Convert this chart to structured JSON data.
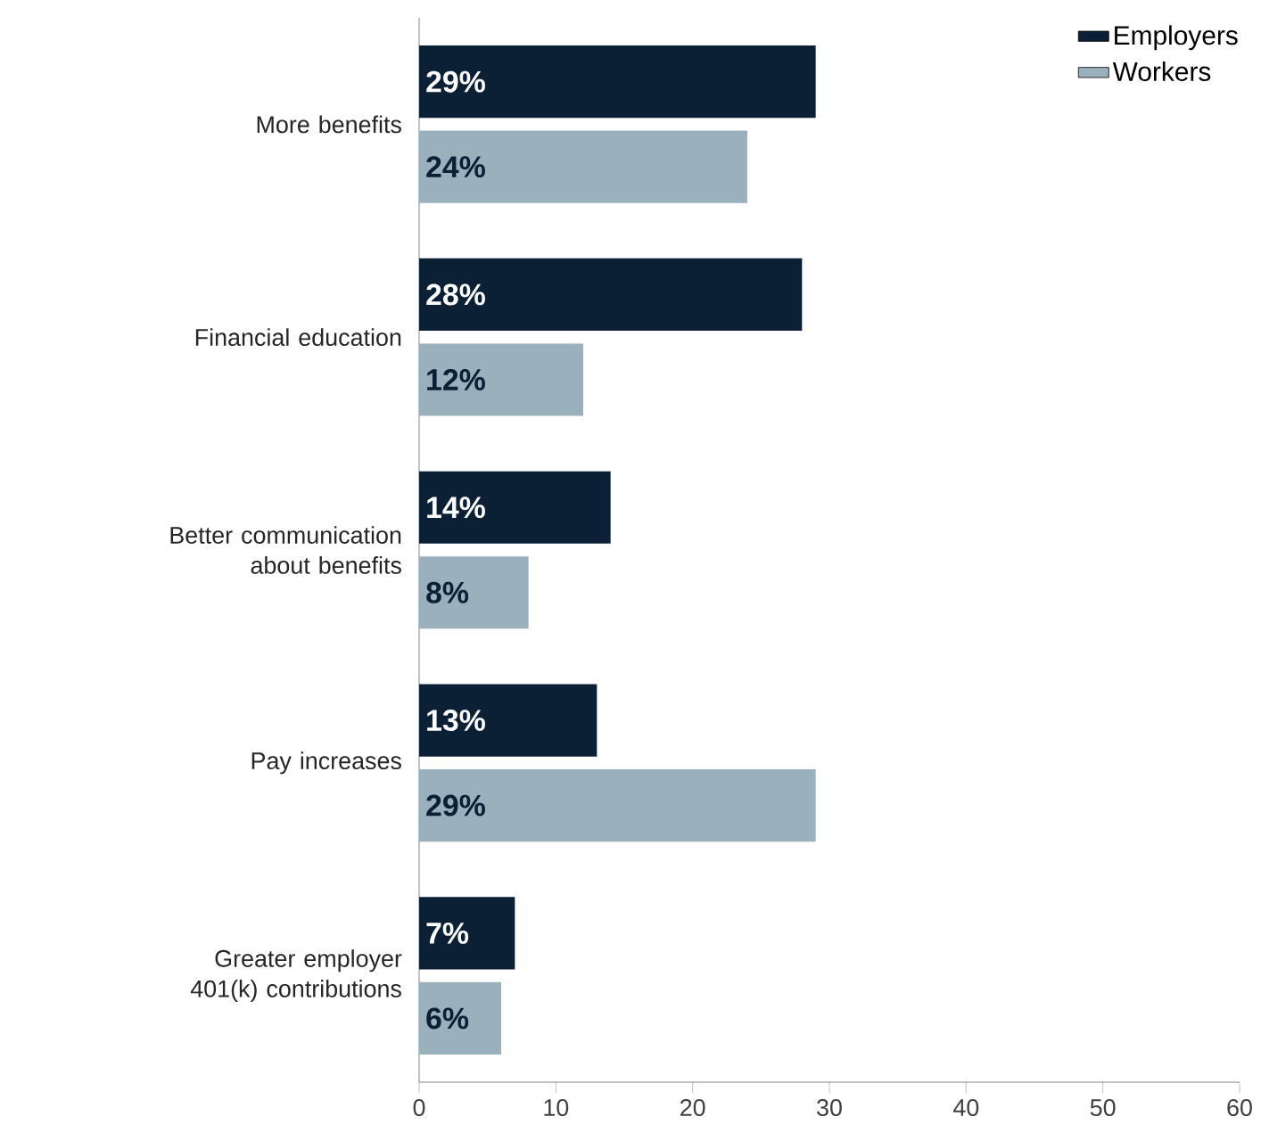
{
  "chart_data": {
    "type": "bar",
    "orientation": "horizontal",
    "categories": [
      "More benefits",
      "Financial education",
      "Better communication about benefits",
      "Pay increases",
      "Greater employer 401(k) contributions"
    ],
    "series": [
      {
        "name": "Employers",
        "color": "#0b1f35",
        "values": [
          29,
          28,
          14,
          13,
          7
        ],
        "value_labels": [
          "29%",
          "28%",
          "14%",
          "13%",
          "7%"
        ]
      },
      {
        "name": "Workers",
        "color": "#9bb0bd",
        "values": [
          24,
          12,
          8,
          29,
          6
        ],
        "value_labels": [
          "24%",
          "12%",
          "8%",
          "29%",
          "6%"
        ]
      }
    ],
    "xlim": [
      0,
      60
    ],
    "xticks": [
      0,
      10,
      20,
      30,
      40,
      50,
      60
    ],
    "legend": "top right",
    "grid": false
  }
}
